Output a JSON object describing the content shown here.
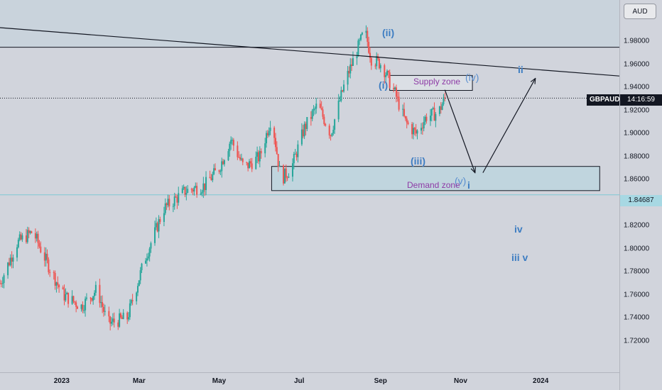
{
  "symbol": "GBPAUD",
  "currency": "AUD",
  "countdown": "14:16:59",
  "level_price": "1.84687",
  "price_ticks": [
    "1.98000",
    "1.96000",
    "1.94000",
    "1.92000",
    "1.90000",
    "1.88000",
    "1.86000",
    "1.84000",
    "1.82000",
    "1.80000",
    "1.78000",
    "1.76000",
    "1.74000",
    "1.72000"
  ],
  "time_ticks": [
    "2023",
    "Mar",
    "May",
    "Jul",
    "Sep",
    "Nov",
    "2024"
  ],
  "annotations": {
    "supply_zone": "Supply zone",
    "demand_zone": "Demand zone",
    "wave_ii": "(ii)",
    "wave_i": "(i)",
    "wave_iii": "(iii)",
    "wave_iv": "(iv)",
    "wave_v": "(v)",
    "wave_small_i": "i",
    "wave_big_ii": "ii",
    "wave_small_iv": "iv",
    "wave_small_iii_v": "iii v"
  },
  "colors": {
    "background": "#d1d4dc",
    "bull": "#26a69a",
    "bear": "#ef5350",
    "wave_label": "#3d7dc2",
    "zone_label": "#8e3ba6",
    "level_line": "#7ec8d3"
  },
  "chart_data": {
    "type": "candlestick",
    "symbol": "GBPAUD",
    "ylim": [
      1.71,
      2.0
    ],
    "x_range": [
      "2022-11-15",
      "2024-03-01"
    ],
    "key_levels": {
      "horizontal_resistance": 1.975,
      "current_price": 1.9308,
      "support_line": 1.84687,
      "trendline_start": {
        "date": "2022-11-15",
        "price": 1.992
      },
      "trendline_end": {
        "date": "2024-03-01",
        "price": 1.95
      }
    },
    "zones": [
      {
        "label": "Supply zone",
        "from": "2023-09-08",
        "to": "2023-11-10",
        "top": 1.9505,
        "bottom": 1.9375
      },
      {
        "label": "Demand zone",
        "from": "2023-06-10",
        "to": "2024-02-15",
        "top": 1.8715,
        "bottom": 1.8505
      }
    ],
    "close_path": [
      [
        "2022-11-15",
        1.77
      ],
      [
        "2022-11-28",
        1.805
      ],
      [
        "2022-12-10",
        1.815
      ],
      [
        "2022-12-20",
        1.79
      ],
      [
        "2023-01-02",
        1.76
      ],
      [
        "2023-01-16",
        1.75
      ],
      [
        "2023-01-28",
        1.765
      ],
      [
        "2023-02-05",
        1.735
      ],
      [
        "2023-02-20",
        1.74
      ],
      [
        "2023-03-05",
        1.79
      ],
      [
        "2023-03-20",
        1.835
      ],
      [
        "2023-04-05",
        1.85
      ],
      [
        "2023-04-20",
        1.855
      ],
      [
        "2023-05-01",
        1.87
      ],
      [
        "2023-05-10",
        1.895
      ],
      [
        "2023-05-20",
        1.87
      ],
      [
        "2023-06-01",
        1.88
      ],
      [
        "2023-06-10",
        1.915
      ],
      [
        "2023-06-17",
        1.86
      ],
      [
        "2023-06-25",
        1.87
      ],
      [
        "2023-07-05",
        1.905
      ],
      [
        "2023-07-15",
        1.925
      ],
      [
        "2023-07-25",
        1.9
      ],
      [
        "2023-08-05",
        1.945
      ],
      [
        "2023-08-15",
        1.975
      ],
      [
        "2023-08-20",
        1.99
      ],
      [
        "2023-08-25",
        1.965
      ],
      [
        "2023-09-02",
        1.96
      ],
      [
        "2023-09-08",
        1.945
      ],
      [
        "2023-09-12",
        1.935
      ],
      [
        "2023-09-20",
        1.91
      ],
      [
        "2023-09-28",
        1.9
      ],
      [
        "2023-10-06",
        1.915
      ],
      [
        "2023-10-15",
        1.918
      ],
      [
        "2023-10-20",
        1.9308
      ]
    ]
  }
}
